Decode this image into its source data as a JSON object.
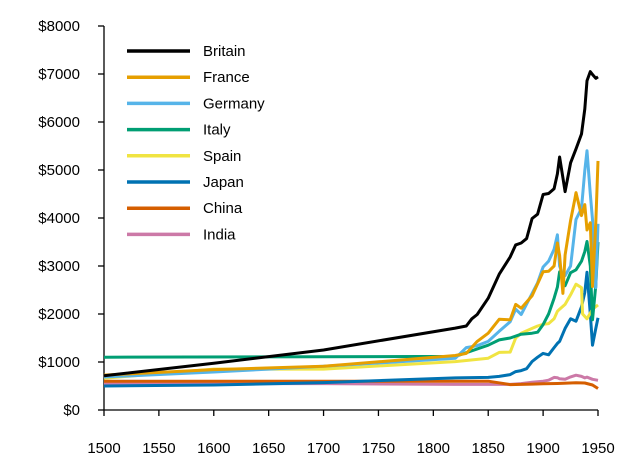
{
  "chart_data": {
    "type": "line",
    "title": "",
    "xlabel": "",
    "ylabel": "",
    "xlim": [
      1500,
      1950
    ],
    "ylim": [
      0,
      8000
    ],
    "x_ticks": [
      1500,
      1550,
      1600,
      1650,
      1700,
      1750,
      1800,
      1850,
      1900,
      1950
    ],
    "x_tick_labels": [
      "1500",
      "1550",
      "1600",
      "1650",
      "1700",
      "1750",
      "1800",
      "1850",
      "1900",
      "1950"
    ],
    "y_ticks": [
      0,
      1000,
      2000,
      3000,
      4000,
      5000,
      6000,
      7000,
      8000
    ],
    "y_tick_labels": [
      "$0",
      "$1000",
      "$2000",
      "$3000",
      "$4000",
      "$5000",
      "$6000",
      "$7000",
      "$8000"
    ],
    "grid": false,
    "legend_position": "top-left",
    "series": [
      {
        "name": "Britain",
        "color": "#000000",
        "points": [
          [
            1500,
            714
          ],
          [
            1600,
            974
          ],
          [
            1700,
            1250
          ],
          [
            1820,
            1706
          ],
          [
            1830,
            1749
          ],
          [
            1835,
            1900
          ],
          [
            1840,
            1990
          ],
          [
            1850,
            2330
          ],
          [
            1860,
            2830
          ],
          [
            1870,
            3190
          ],
          [
            1875,
            3440
          ],
          [
            1880,
            3480
          ],
          [
            1885,
            3570
          ],
          [
            1890,
            3990
          ],
          [
            1895,
            4080
          ],
          [
            1900,
            4490
          ],
          [
            1905,
            4510
          ],
          [
            1910,
            4610
          ],
          [
            1913,
            4920
          ],
          [
            1915,
            5270
          ],
          [
            1918,
            4840
          ],
          [
            1920,
            4550
          ],
          [
            1925,
            5150
          ],
          [
            1930,
            5440
          ],
          [
            1935,
            5750
          ],
          [
            1938,
            6270
          ],
          [
            1940,
            6860
          ],
          [
            1943,
            7050
          ],
          [
            1945,
            6990
          ],
          [
            1948,
            6910
          ],
          [
            1950,
            6940
          ]
        ]
      },
      {
        "name": "France",
        "color": "#E69F00",
        "points": [
          [
            1500,
            727
          ],
          [
            1600,
            841
          ],
          [
            1700,
            910
          ],
          [
            1820,
            1135
          ],
          [
            1830,
            1180
          ],
          [
            1840,
            1430
          ],
          [
            1850,
            1600
          ],
          [
            1860,
            1890
          ],
          [
            1870,
            1880
          ],
          [
            1875,
            2200
          ],
          [
            1880,
            2120
          ],
          [
            1890,
            2380
          ],
          [
            1895,
            2630
          ],
          [
            1900,
            2880
          ],
          [
            1905,
            2890
          ],
          [
            1910,
            3000
          ],
          [
            1913,
            3480
          ],
          [
            1915,
            3220
          ],
          [
            1918,
            2430
          ],
          [
            1920,
            3230
          ],
          [
            1925,
            3950
          ],
          [
            1929,
            4400
          ],
          [
            1930,
            4530
          ],
          [
            1935,
            4050
          ],
          [
            1938,
            4280
          ],
          [
            1940,
            3750
          ],
          [
            1943,
            3900
          ],
          [
            1945,
            2570
          ],
          [
            1948,
            3900
          ],
          [
            1950,
            5190
          ]
        ]
      },
      {
        "name": "Germany",
        "color": "#56B4E9",
        "points": [
          [
            1500,
            688
          ],
          [
            1600,
            791
          ],
          [
            1700,
            910
          ],
          [
            1820,
            1077
          ],
          [
            1830,
            1300
          ],
          [
            1840,
            1340
          ],
          [
            1850,
            1430
          ],
          [
            1860,
            1640
          ],
          [
            1870,
            1840
          ],
          [
            1875,
            2100
          ],
          [
            1880,
            1990
          ],
          [
            1890,
            2430
          ],
          [
            1895,
            2650
          ],
          [
            1900,
            2980
          ],
          [
            1905,
            3100
          ],
          [
            1910,
            3350
          ],
          [
            1913,
            3650
          ],
          [
            1915,
            3000
          ],
          [
            1918,
            2800
          ],
          [
            1920,
            2800
          ],
          [
            1925,
            3000
          ],
          [
            1930,
            3970
          ],
          [
            1935,
            4200
          ],
          [
            1938,
            4990
          ],
          [
            1940,
            5400
          ],
          [
            1943,
            4500
          ],
          [
            1945,
            3970
          ],
          [
            1948,
            2550
          ],
          [
            1950,
            3880
          ]
        ]
      },
      {
        "name": "Italy",
        "color": "#009E73",
        "points": [
          [
            1500,
            1100
          ],
          [
            1820,
            1117
          ],
          [
            1850,
            1350
          ],
          [
            1860,
            1460
          ],
          [
            1870,
            1500
          ],
          [
            1880,
            1580
          ],
          [
            1890,
            1600
          ],
          [
            1895,
            1620
          ],
          [
            1900,
            1780
          ],
          [
            1905,
            2000
          ],
          [
            1910,
            2330
          ],
          [
            1913,
            2560
          ],
          [
            1915,
            2880
          ],
          [
            1918,
            2700
          ],
          [
            1920,
            2590
          ],
          [
            1925,
            2860
          ],
          [
            1930,
            2920
          ],
          [
            1935,
            3100
          ],
          [
            1938,
            3300
          ],
          [
            1940,
            3510
          ],
          [
            1943,
            3000
          ],
          [
            1945,
            1880
          ],
          [
            1948,
            2600
          ],
          [
            1950,
            3500
          ]
        ]
      },
      {
        "name": "Spain",
        "color": "#F0E442",
        "points": [
          [
            1500,
            661
          ],
          [
            1600,
            853
          ],
          [
            1700,
            853
          ],
          [
            1820,
            1008
          ],
          [
            1850,
            1079
          ],
          [
            1860,
            1200
          ],
          [
            1870,
            1207
          ],
          [
            1875,
            1500
          ],
          [
            1880,
            1600
          ],
          [
            1890,
            1700
          ],
          [
            1895,
            1750
          ],
          [
            1900,
            1786
          ],
          [
            1905,
            1800
          ],
          [
            1910,
            1900
          ],
          [
            1913,
            2056
          ],
          [
            1915,
            2100
          ],
          [
            1920,
            2200
          ],
          [
            1925,
            2400
          ],
          [
            1930,
            2620
          ],
          [
            1935,
            2550
          ],
          [
            1936,
            2000
          ],
          [
            1940,
            1900
          ],
          [
            1945,
            2100
          ],
          [
            1950,
            2189
          ]
        ]
      },
      {
        "name": "Japan",
        "color": "#0072B2",
        "points": [
          [
            1500,
            500
          ],
          [
            1600,
            520
          ],
          [
            1700,
            570
          ],
          [
            1820,
            669
          ],
          [
            1850,
            679
          ],
          [
            1860,
            700
          ],
          [
            1870,
            737
          ],
          [
            1875,
            800
          ],
          [
            1880,
            820
          ],
          [
            1885,
            860
          ],
          [
            1890,
            1010
          ],
          [
            1895,
            1100
          ],
          [
            1900,
            1180
          ],
          [
            1905,
            1150
          ],
          [
            1910,
            1300
          ],
          [
            1913,
            1387
          ],
          [
            1915,
            1430
          ],
          [
            1920,
            1700
          ],
          [
            1925,
            1900
          ],
          [
            1930,
            1850
          ],
          [
            1935,
            2150
          ],
          [
            1938,
            2450
          ],
          [
            1940,
            2870
          ],
          [
            1943,
            2000
          ],
          [
            1945,
            1350
          ],
          [
            1948,
            1700
          ],
          [
            1950,
            1920
          ]
        ]
      },
      {
        "name": "China",
        "color": "#D55E00",
        "points": [
          [
            1500,
            600
          ],
          [
            1600,
            600
          ],
          [
            1700,
            600
          ],
          [
            1820,
            600
          ],
          [
            1850,
            600
          ],
          [
            1870,
            530
          ],
          [
            1890,
            540
          ],
          [
            1900,
            545
          ],
          [
            1913,
            552
          ],
          [
            1930,
            567
          ],
          [
            1938,
            562
          ],
          [
            1945,
            520
          ],
          [
            1950,
            448
          ]
        ]
      },
      {
        "name": "India",
        "color": "#CC79A7",
        "points": [
          [
            1500,
            550
          ],
          [
            1600,
            550
          ],
          [
            1700,
            550
          ],
          [
            1820,
            533
          ],
          [
            1850,
            533
          ],
          [
            1870,
            533
          ],
          [
            1880,
            550
          ],
          [
            1890,
            580
          ],
          [
            1900,
            600
          ],
          [
            1905,
            620
          ],
          [
            1910,
            680
          ],
          [
            1913,
            673
          ],
          [
            1915,
            650
          ],
          [
            1920,
            640
          ],
          [
            1925,
            690
          ],
          [
            1930,
            726
          ],
          [
            1935,
            700
          ],
          [
            1938,
            668
          ],
          [
            1940,
            686
          ],
          [
            1945,
            640
          ],
          [
            1950,
            619
          ]
        ]
      }
    ]
  }
}
